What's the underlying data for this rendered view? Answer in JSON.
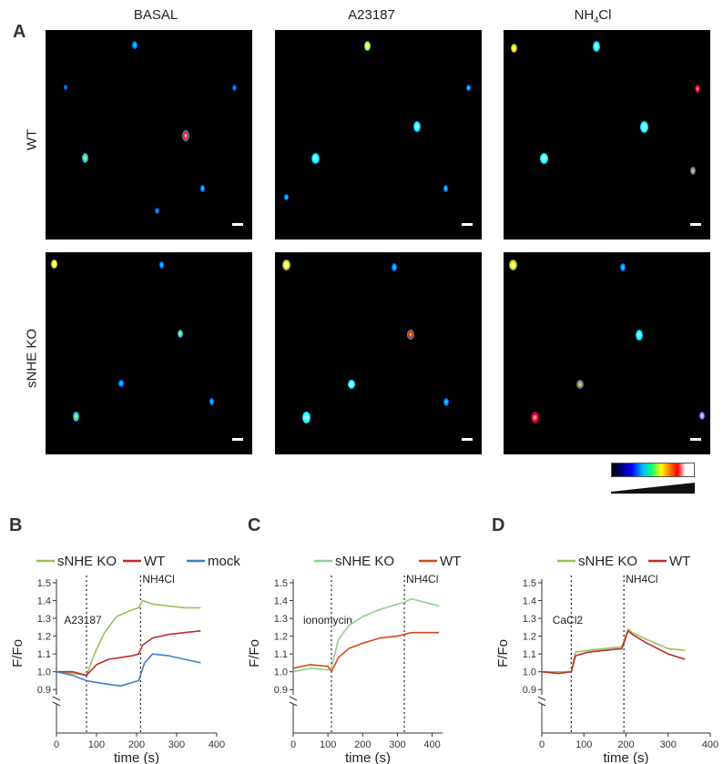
{
  "figure": {
    "panel_labels": {
      "a": "A",
      "b": "B",
      "c": "C",
      "d": "D"
    },
    "columns": [
      "BASAL",
      "A23187",
      "NH4Cl"
    ],
    "rows": [
      "WT",
      "sNHE KO"
    ]
  },
  "colors": {
    "sNHE KO": "#98c05a",
    "WT": "#c22a2a",
    "mock": "#3f7ec3",
    "sNHE KO (C)": "#8fd08f",
    "WT (C)": "#d04a1a"
  },
  "chart_data": [
    {
      "id": "B",
      "type": "line",
      "xlabel": "time (s)",
      "ylabel": "F/Fo",
      "xlim": [
        0,
        400
      ],
      "ylim": [
        0.85,
        1.5
      ],
      "xticks": [
        0,
        100,
        200,
        300,
        400
      ],
      "yticks": [
        0.9,
        1.0,
        1.1,
        1.2,
        1.3,
        1.4,
        1.5
      ],
      "legend": "top",
      "annotations": [
        {
          "x": 75,
          "label": "A23187"
        },
        {
          "x": 210,
          "label": "NH4Cl"
        }
      ],
      "series": [
        {
          "name": "sNHE KO",
          "x": [
            0,
            40,
            75,
            95,
            120,
            150,
            180,
            205,
            215,
            240,
            280,
            320,
            360
          ],
          "y": [
            1.0,
            0.99,
            0.98,
            1.1,
            1.22,
            1.31,
            1.34,
            1.36,
            1.4,
            1.38,
            1.37,
            1.36,
            1.36
          ]
        },
        {
          "name": "WT",
          "x": [
            0,
            40,
            75,
            100,
            130,
            160,
            190,
            205,
            215,
            240,
            280,
            320,
            360
          ],
          "y": [
            1.0,
            1.0,
            0.98,
            1.04,
            1.07,
            1.08,
            1.09,
            1.1,
            1.15,
            1.19,
            1.21,
            1.22,
            1.23
          ]
        },
        {
          "name": "mock",
          "x": [
            0,
            40,
            75,
            100,
            130,
            160,
            190,
            205,
            220,
            240,
            280,
            320,
            360
          ],
          "y": [
            1.0,
            0.98,
            0.95,
            0.94,
            0.93,
            0.92,
            0.94,
            0.95,
            1.05,
            1.1,
            1.09,
            1.07,
            1.05
          ]
        }
      ]
    },
    {
      "id": "C",
      "type": "line",
      "xlabel": "time (s)",
      "ylabel": "F/Fo",
      "xlim": [
        0,
        430
      ],
      "ylim": [
        0.85,
        1.5
      ],
      "xticks": [
        0,
        100,
        200,
        300,
        400
      ],
      "yticks": [
        0.9,
        1.0,
        1.1,
        1.2,
        1.3,
        1.4,
        1.5
      ],
      "legend": "top",
      "annotations": [
        {
          "x": 110,
          "label": "ionomycin"
        },
        {
          "x": 320,
          "label": "NH4Cl"
        }
      ],
      "series": [
        {
          "name": "sNHE KO",
          "x": [
            0,
            50,
            100,
            110,
            130,
            160,
            200,
            250,
            300,
            320,
            340,
            380,
            420
          ],
          "y": [
            1.0,
            1.02,
            1.01,
            1.02,
            1.18,
            1.26,
            1.31,
            1.35,
            1.38,
            1.39,
            1.41,
            1.39,
            1.37
          ]
        },
        {
          "name": "WT",
          "x": [
            0,
            50,
            100,
            110,
            130,
            160,
            200,
            250,
            300,
            320,
            340,
            380,
            420
          ],
          "y": [
            1.02,
            1.04,
            1.03,
            1.0,
            1.08,
            1.13,
            1.16,
            1.19,
            1.2,
            1.21,
            1.22,
            1.22,
            1.22
          ]
        }
      ]
    },
    {
      "id": "D",
      "type": "line",
      "xlabel": "time (s)",
      "ylabel": "F/Fo",
      "xlim": [
        0,
        400
      ],
      "ylim": [
        0.85,
        1.5
      ],
      "xticks": [
        0,
        100,
        200,
        300,
        400
      ],
      "yticks": [
        0.9,
        1.0,
        1.1,
        1.2,
        1.3,
        1.4,
        1.5
      ],
      "legend": "top",
      "annotations": [
        {
          "x": 70,
          "label": "CaCl2"
        },
        {
          "x": 195,
          "label": "NH4Cl"
        }
      ],
      "series": [
        {
          "name": "sNHE KO",
          "x": [
            0,
            40,
            70,
            80,
            110,
            150,
            190,
            205,
            215,
            250,
            300,
            340
          ],
          "y": [
            1.0,
            1.0,
            1.0,
            1.11,
            1.12,
            1.13,
            1.14,
            1.24,
            1.22,
            1.18,
            1.13,
            1.12
          ]
        },
        {
          "name": "WT",
          "x": [
            0,
            40,
            70,
            80,
            110,
            150,
            190,
            205,
            215,
            250,
            300,
            340
          ],
          "y": [
            1.0,
            0.99,
            1.0,
            1.09,
            1.11,
            1.12,
            1.13,
            1.23,
            1.21,
            1.16,
            1.1,
            1.07
          ]
        }
      ]
    }
  ]
}
